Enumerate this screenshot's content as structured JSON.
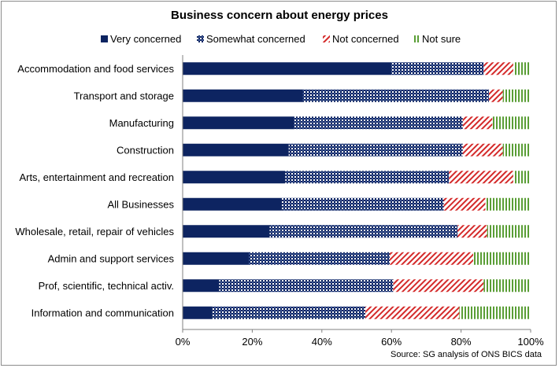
{
  "chart_data": {
    "type": "bar",
    "orientation": "horizontal",
    "stacked": true,
    "title": "Business concern about energy prices",
    "source": "Source: SG analysis of ONS BICS data",
    "categories": [
      "Accommodation and food services",
      "Transport and storage",
      "Manufacturing",
      "Construction",
      "Arts, entertainment and recreation",
      "All Businesses",
      "Wholesale, retail, repair of vehicles",
      "Admin and support services",
      "Prof, scientific, technical activ.",
      "Information and communication"
    ],
    "series": [
      {
        "name": "Very concerned",
        "color": "#0d2461",
        "pattern": "solid",
        "values": [
          60,
          34.5,
          32,
          30.5,
          29.5,
          28.5,
          25,
          19,
          10.5,
          8.5
        ]
      },
      {
        "name": "Somewhat concerned",
        "color": "#0d2461",
        "pattern": "checker",
        "values": [
          26.5,
          53.5,
          48.5,
          50,
          47,
          46.5,
          54,
          40.5,
          50,
          44
        ]
      },
      {
        "name": "Not concerned",
        "color": "#d42a2a",
        "pattern": "diagonal",
        "values": [
          8.5,
          4,
          8.5,
          11.5,
          18.5,
          12,
          8.5,
          24,
          26,
          27
        ]
      },
      {
        "name": "Not sure",
        "color": "#5a9e36",
        "pattern": "vertical",
        "values": [
          5,
          8,
          11,
          8,
          5,
          13,
          12.5,
          16.5,
          13.5,
          20.5
        ]
      }
    ],
    "x_ticks": [
      "0%",
      "20%",
      "40%",
      "60%",
      "80%",
      "100%"
    ],
    "xlim": [
      0,
      100
    ],
    "legend_position": "top",
    "grid": false
  }
}
